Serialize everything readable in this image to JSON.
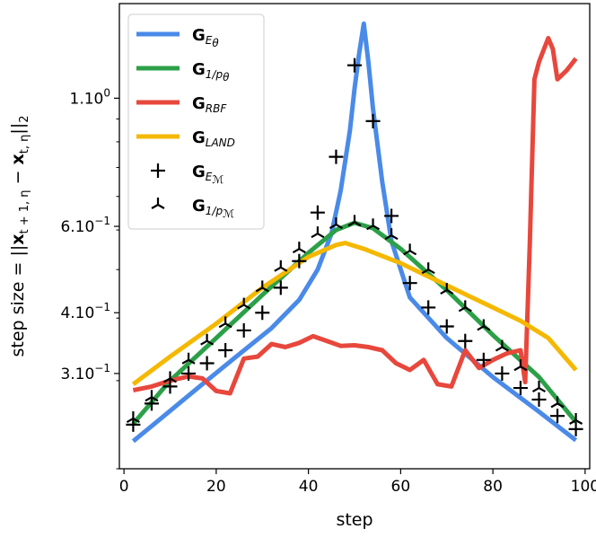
{
  "chart_data": {
    "type": "line",
    "title": "",
    "xlabel": "step",
    "ylabel": "step size = ||x_{t+1,η} − x_{t,η}||₂",
    "ylabel_parts": {
      "prefix": "step size = ||",
      "x1": "x",
      "sub1": "t + 1, η",
      "minus": " − ",
      "x2": "x",
      "sub2": "t, η",
      "suffix": "||",
      "norm_sub": "2"
    },
    "xlim": [
      -1,
      101
    ],
    "ylim": [
      0.2,
      1.7
    ],
    "yscale": "log",
    "xticks": [
      0,
      20,
      40,
      60,
      80,
      100
    ],
    "xtick_labels": [
      "0",
      "20",
      "40",
      "60",
      "80",
      "100"
    ],
    "yticks": [
      {
        "value": 1.1,
        "mant": "1.10",
        "exp": "0"
      },
      {
        "value": 0.61,
        "mant": "6.10",
        "exp": "−1"
      },
      {
        "value": 0.41,
        "mant": "4.10",
        "exp": "−1"
      },
      {
        "value": 0.31,
        "mant": "3.10",
        "exp": "−1"
      }
    ],
    "legend_position": "upper-left",
    "series": [
      {
        "name": "G_Eθ",
        "label_main": "G",
        "label_sub": "E",
        "label_subsub": "θ",
        "kind": "line",
        "color": "#4a8ae8",
        "x": [
          2,
          8,
          16,
          24,
          32,
          38,
          42,
          45,
          47,
          49,
          50,
          51,
          52,
          53,
          54,
          56,
          58,
          62,
          70,
          80,
          90,
          98
        ],
        "y": [
          0.227,
          0.252,
          0.29,
          0.333,
          0.382,
          0.435,
          0.5,
          0.59,
          0.72,
          0.95,
          1.15,
          1.35,
          1.55,
          1.3,
          1.05,
          0.75,
          0.57,
          0.44,
          0.365,
          0.305,
          0.26,
          0.228
        ]
      },
      {
        "name": "G_1/pθ",
        "label_main": "G",
        "label_sub": "1/p",
        "label_subsub": "θ",
        "kind": "line",
        "color": "#2ca048",
        "x": [
          2,
          10,
          20,
          30,
          40,
          46,
          50,
          54,
          60,
          70,
          80,
          90,
          98
        ],
        "y": [
          0.246,
          0.3,
          0.365,
          0.445,
          0.54,
          0.6,
          0.62,
          0.605,
          0.55,
          0.455,
          0.37,
          0.305,
          0.248
        ]
      },
      {
        "name": "G_RBF",
        "label_main": "G",
        "label_sub": "RBF",
        "label_subsub": "",
        "kind": "line",
        "color": "#e8473c",
        "x": [
          2,
          6,
          10,
          14,
          17,
          20,
          23,
          26,
          29,
          32,
          35,
          38,
          41,
          44,
          47,
          50,
          53,
          56,
          59,
          62,
          65,
          68,
          71,
          74,
          77,
          80,
          83,
          86,
          87,
          88,
          89,
          90,
          92,
          93,
          94,
          96,
          98
        ],
        "y": [
          0.287,
          0.292,
          0.3,
          0.306,
          0.303,
          0.286,
          0.283,
          0.332,
          0.335,
          0.355,
          0.35,
          0.357,
          0.368,
          0.36,
          0.352,
          0.353,
          0.35,
          0.345,
          0.325,
          0.315,
          0.33,
          0.295,
          0.292,
          0.345,
          0.318,
          0.33,
          0.34,
          0.345,
          0.298,
          0.56,
          1.2,
          1.3,
          1.45,
          1.38,
          1.2,
          1.25,
          1.32
        ]
      },
      {
        "name": "G_LAND",
        "label_main": "G",
        "label_sub": "LAND",
        "label_subsub": "",
        "kind": "line",
        "color": "#f5b800",
        "x": [
          2,
          10,
          20,
          30,
          40,
          46,
          48,
          52,
          60,
          70,
          80,
          86,
          92,
          98
        ],
        "y": [
          0.295,
          0.335,
          0.39,
          0.46,
          0.53,
          0.56,
          0.565,
          0.55,
          0.515,
          0.465,
          0.42,
          0.395,
          0.365,
          0.315
        ]
      },
      {
        "name": "G_EM",
        "label_main": "G",
        "label_sub": "E",
        "label_subsub": "ℳ",
        "kind": "scatter",
        "marker": "plus",
        "color": "#000000",
        "x": [
          2,
          6,
          10,
          14,
          18,
          22,
          26,
          30,
          34,
          38,
          42,
          46,
          50,
          54,
          58,
          62,
          66,
          70,
          74,
          78,
          82,
          86,
          90,
          94,
          98
        ],
        "y": [
          0.245,
          0.27,
          0.292,
          0.31,
          0.325,
          0.345,
          0.378,
          0.41,
          0.46,
          0.52,
          0.65,
          0.84,
          1.28,
          0.99,
          0.64,
          0.47,
          0.42,
          0.385,
          0.36,
          0.33,
          0.31,
          0.29,
          0.275,
          0.255,
          0.24
        ]
      },
      {
        "name": "G_1/pM",
        "label_main": "G",
        "label_sub": "1/p",
        "label_subsub": "ℳ",
        "kind": "scatter",
        "marker": "tri",
        "color": "#000000",
        "x": [
          2,
          6,
          10,
          14,
          18,
          22,
          26,
          30,
          34,
          38,
          42,
          46,
          50,
          54,
          58,
          62,
          66,
          70,
          74,
          78,
          82,
          86,
          90,
          94,
          98
        ],
        "y": [
          0.252,
          0.278,
          0.303,
          0.33,
          0.36,
          0.39,
          0.425,
          0.46,
          0.505,
          0.55,
          0.59,
          0.615,
          0.622,
          0.612,
          0.585,
          0.545,
          0.5,
          0.455,
          0.42,
          0.385,
          0.35,
          0.32,
          0.29,
          0.27,
          0.25
        ]
      }
    ]
  }
}
